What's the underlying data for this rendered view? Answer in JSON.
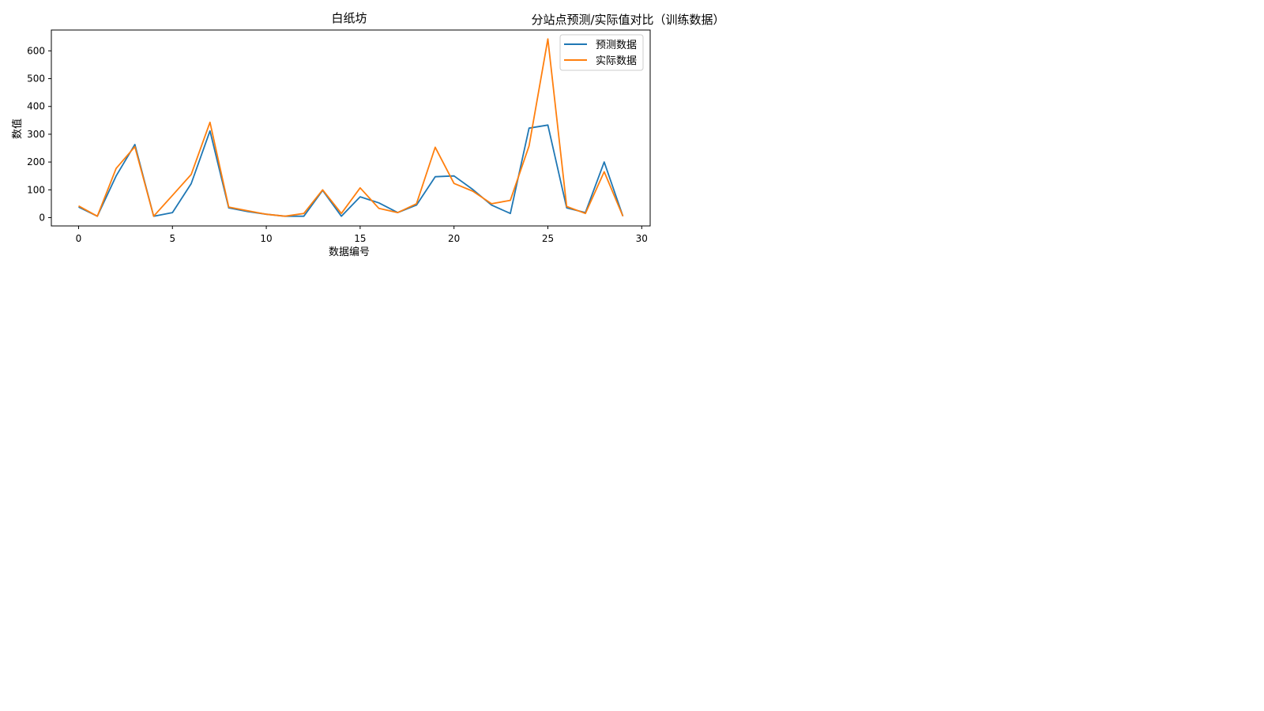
{
  "figure": {
    "suptitle": "分站点预测/实际值对比（训练数据）"
  },
  "chart_data": {
    "type": "line",
    "title": "白纸坊",
    "xlabel": "数据编号",
    "ylabel": "数值",
    "xlim": [
      -1.45,
      30.45
    ],
    "ylim": [
      -30,
      675
    ],
    "xticks": [
      0,
      5,
      10,
      15,
      20,
      25,
      30
    ],
    "yticks": [
      0,
      100,
      200,
      300,
      400,
      500,
      600
    ],
    "grid": false,
    "legend_position": "top-right",
    "x": [
      0,
      1,
      2,
      3,
      4,
      5,
      6,
      7,
      8,
      9,
      10,
      11,
      12,
      13,
      14,
      15,
      16,
      17,
      18,
      19,
      20,
      21,
      22,
      23,
      24,
      25,
      26,
      27,
      28,
      29
    ],
    "series": [
      {
        "name": "预测数据",
        "color": "#1f77b4",
        "values": [
          38,
          5,
          150,
          263,
          5,
          18,
          122,
          312,
          35,
          22,
          12,
          5,
          5,
          98,
          5,
          75,
          53,
          18,
          45,
          147,
          150,
          101,
          45,
          15,
          322,
          333,
          35,
          18,
          200,
          5
        ]
      },
      {
        "name": "实际数据",
        "color": "#ff7f0e",
        "values": [
          42,
          5,
          177,
          255,
          5,
          80,
          155,
          343,
          38,
          25,
          12,
          5,
          15,
          100,
          15,
          107,
          33,
          18,
          50,
          253,
          123,
          95,
          50,
          62,
          258,
          643,
          40,
          15,
          165,
          5
        ]
      }
    ]
  }
}
